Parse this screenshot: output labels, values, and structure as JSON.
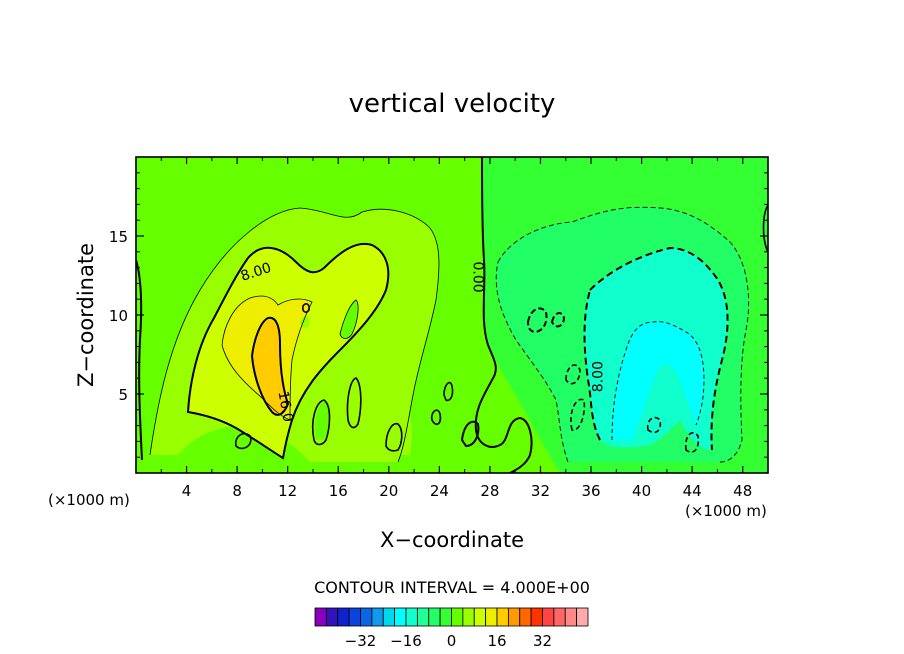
{
  "chart_data": {
    "type": "heatmap",
    "title": "vertical velocity",
    "xlabel": "X−coordinate",
    "ylabel": "Z−coordinate",
    "x_units_left": "(×1000 m)",
    "x_units_right": "(×1000 m)",
    "xlim": [
      0,
      50
    ],
    "ylim": [
      0,
      20
    ],
    "x_ticks": [
      4,
      8,
      12,
      16,
      20,
      24,
      28,
      32,
      36,
      40,
      44,
      48
    ],
    "x_tick_labels": [
      "4",
      "8",
      "12",
      "16",
      "20",
      "24",
      "28",
      "32",
      "36",
      "40",
      "44",
      "48"
    ],
    "y_ticks": [
      5,
      10,
      15
    ],
    "y_tick_labels": [
      "5",
      "10",
      "15"
    ],
    "contour_interval_text": "CONTOUR INTERVAL =  4.000E+00",
    "contour_labels": [
      {
        "text": "8.00",
        "x": 9.5,
        "y": 12.7,
        "rotate": -18
      },
      {
        "text": "0.00",
        "x": 27,
        "y": 12.4,
        "rotate": 90
      },
      {
        "text": "16.0",
        "x": 11.8,
        "y": 4.2,
        "rotate": 80
      },
      {
        "text": "8.00",
        "x": 36.6,
        "y": 6.1,
        "rotate": -90
      }
    ],
    "colorbar": {
      "colors": [
        "#8800bb",
        "#3311bb",
        "#1122cc",
        "#0a44dd",
        "#0a66e6",
        "#1199ee",
        "#00d8ee",
        "#00ffff",
        "#11ffcc",
        "#22ff99",
        "#22ff66",
        "#33ff33",
        "#66ff00",
        "#99ff00",
        "#ccff00",
        "#eeee00",
        "#ffcc00",
        "#ff9900",
        "#ff6600",
        "#ff3300",
        "#ff4444",
        "#ff6666",
        "#ff8888",
        "#ffaaaa"
      ],
      "tick_labels": [
        "−32",
        "−16",
        "0",
        "16",
        "32"
      ],
      "tick_values": [
        -32,
        -16,
        0,
        16,
        32
      ]
    },
    "grid": false
  }
}
